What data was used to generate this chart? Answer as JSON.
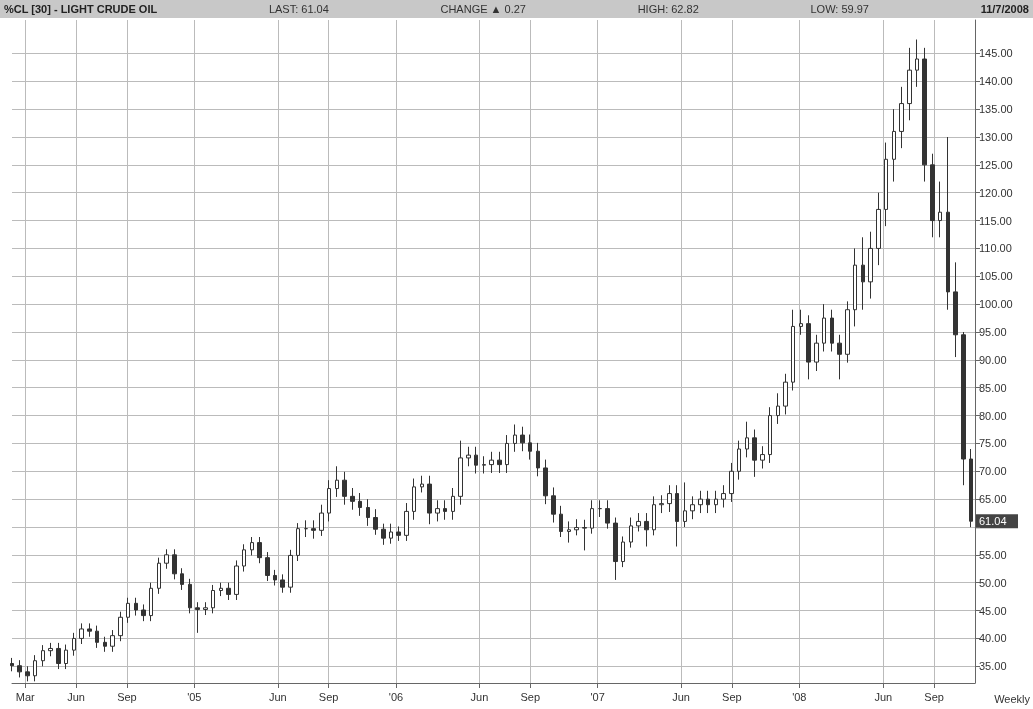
{
  "chart_data": {
    "type": "candlestick",
    "title": "%CL [30] - LIGHT CRUDE OIL",
    "annotations": [
      "LAST: 61.04",
      "CHANGE ▲ 0.27",
      "HIGH: 62.82",
      "LOW: 59.97",
      "11/7/2008",
      "Weekly",
      {
        "text": "61.04",
        "x": "2008-11-07",
        "y": 61.04
      }
    ],
    "x": [
      "2004-02-06",
      "2004-02-20",
      "2004-03-05",
      "2004-03-19",
      "2004-04-02",
      "2004-04-16",
      "2004-04-30",
      "2004-05-14",
      "2004-05-28",
      "2004-06-11",
      "2004-06-25",
      "2004-07-09",
      "2004-07-23",
      "2004-08-06",
      "2004-08-20",
      "2004-09-03",
      "2004-09-17",
      "2004-10-01",
      "2004-10-15",
      "2004-10-29",
      "2004-11-12",
      "2004-11-26",
      "2004-12-10",
      "2004-12-24",
      "2005-01-07",
      "2005-01-21",
      "2005-02-04",
      "2005-02-18",
      "2005-03-04",
      "2005-03-18",
      "2005-04-01",
      "2005-04-15",
      "2005-04-29",
      "2005-05-13",
      "2005-05-27",
      "2005-06-10",
      "2005-06-24",
      "2005-07-08",
      "2005-07-22",
      "2005-08-05",
      "2005-08-19",
      "2005-09-02",
      "2005-09-16",
      "2005-09-30",
      "2005-10-14",
      "2005-10-28",
      "2005-11-11",
      "2005-11-25",
      "2005-12-09",
      "2005-12-23",
      "2006-01-06",
      "2006-01-20",
      "2006-02-03",
      "2006-02-17",
      "2006-03-03",
      "2006-03-17",
      "2006-03-31",
      "2006-04-14",
      "2006-04-28",
      "2006-05-12",
      "2006-05-26",
      "2006-06-09",
      "2006-06-23",
      "2006-07-07",
      "2006-07-21",
      "2006-08-04",
      "2006-08-18",
      "2006-09-01",
      "2006-09-15",
      "2006-09-29",
      "2006-10-13",
      "2006-10-27",
      "2006-11-10",
      "2006-11-24",
      "2006-12-08",
      "2006-12-22",
      "2007-01-05",
      "2007-01-19",
      "2007-02-02",
      "2007-02-16",
      "2007-03-02",
      "2007-03-16",
      "2007-03-30",
      "2007-04-13",
      "2007-04-27",
      "2007-05-11",
      "2007-05-25",
      "2007-06-08",
      "2007-06-22",
      "2007-07-06",
      "2007-07-20",
      "2007-08-03",
      "2007-08-17",
      "2007-08-31",
      "2007-09-14",
      "2007-09-28",
      "2007-10-12",
      "2007-10-26",
      "2007-11-09",
      "2007-11-23",
      "2007-12-07",
      "2007-12-21",
      "2008-01-04",
      "2008-01-18",
      "2008-02-01",
      "2008-02-15",
      "2008-02-29",
      "2008-03-14",
      "2008-03-28",
      "2008-04-11",
      "2008-04-25",
      "2008-05-09",
      "2008-05-23",
      "2008-06-06",
      "2008-06-20",
      "2008-07-04",
      "2008-07-18",
      "2008-08-01",
      "2008-08-15",
      "2008-08-29",
      "2008-09-12",
      "2008-09-26",
      "2008-10-10",
      "2008-10-24",
      "2008-11-07"
    ],
    "ohlc": [
      [
        35.5,
        36.5,
        34.1,
        35.1
      ],
      [
        35.1,
        36.1,
        33.0,
        34.0
      ],
      [
        34.0,
        35.0,
        32.3,
        33.3
      ],
      [
        33.3,
        37.0,
        32.3,
        36.0
      ],
      [
        36.0,
        38.8,
        35.0,
        37.8
      ],
      [
        37.8,
        39.2,
        36.8,
        38.2
      ],
      [
        38.2,
        39.2,
        34.5,
        35.5
      ],
      [
        35.5,
        38.9,
        34.5,
        37.9
      ],
      [
        37.9,
        41.0,
        36.9,
        40.0
      ],
      [
        40.0,
        42.7,
        39.0,
        41.7
      ],
      [
        41.7,
        42.7,
        40.3,
        41.3
      ],
      [
        41.3,
        42.3,
        38.3,
        39.3
      ],
      [
        39.3,
        40.3,
        37.6,
        38.6
      ],
      [
        38.6,
        41.5,
        37.6,
        40.5
      ],
      [
        40.5,
        44.8,
        39.5,
        43.8
      ],
      [
        43.8,
        47.3,
        42.8,
        46.3
      ],
      [
        46.3,
        47.3,
        44.1,
        45.1
      ],
      [
        45.1,
        46.1,
        43.1,
        44.1
      ],
      [
        44.1,
        50.0,
        43.1,
        49.0
      ],
      [
        49.0,
        54.5,
        48.0,
        53.5
      ],
      [
        53.5,
        56.0,
        52.5,
        55.0
      ],
      [
        55.0,
        56.0,
        50.6,
        51.6
      ],
      [
        51.6,
        52.6,
        48.7,
        49.7
      ],
      [
        49.7,
        50.7,
        44.5,
        45.5
      ],
      [
        45.5,
        46.5,
        41.0,
        45.2
      ],
      [
        45.2,
        46.5,
        44.2,
        45.5
      ],
      [
        45.5,
        49.6,
        44.5,
        48.6
      ],
      [
        48.6,
        50.0,
        47.6,
        49.0
      ],
      [
        49.0,
        50.0,
        46.9,
        47.9
      ],
      [
        47.9,
        54.0,
        46.9,
        53.0
      ],
      [
        53.0,
        56.9,
        52.0,
        55.9
      ],
      [
        55.9,
        58.2,
        54.9,
        57.2
      ],
      [
        57.2,
        58.2,
        53.5,
        54.5
      ],
      [
        54.5,
        55.5,
        50.3,
        51.3
      ],
      [
        51.3,
        52.3,
        49.5,
        50.5
      ],
      [
        50.5,
        51.5,
        48.2,
        49.2
      ],
      [
        49.2,
        55.9,
        48.2,
        54.9
      ],
      [
        54.9,
        60.7,
        53.9,
        59.7
      ],
      [
        59.7,
        61.2,
        58.2,
        59.7
      ],
      [
        59.7,
        61.2,
        57.9,
        59.4
      ],
      [
        59.4,
        64.0,
        58.4,
        62.5
      ],
      [
        62.5,
        68.4,
        61.0,
        66.9
      ],
      [
        66.9,
        70.9,
        65.4,
        68.4
      ],
      [
        68.4,
        69.9,
        64.0,
        65.5
      ],
      [
        65.5,
        67.0,
        63.1,
        64.6
      ],
      [
        64.6,
        66.1,
        62.0,
        63.5
      ],
      [
        63.5,
        65.0,
        60.2,
        61.7
      ],
      [
        61.7,
        63.2,
        58.6,
        59.6
      ],
      [
        59.6,
        60.6,
        56.8,
        58.0
      ],
      [
        58.0,
        60.6,
        57.0,
        59.1
      ],
      [
        59.1,
        60.1,
        57.5,
        58.5
      ],
      [
        58.5,
        64.3,
        57.5,
        62.8
      ],
      [
        62.8,
        68.7,
        61.3,
        67.2
      ],
      [
        67.2,
        69.2,
        66.2,
        67.7
      ],
      [
        67.7,
        69.2,
        60.5,
        62.5
      ],
      [
        62.5,
        64.8,
        61.0,
        63.3
      ],
      [
        63.3,
        64.8,
        61.3,
        62.8
      ],
      [
        62.8,
        67.0,
        61.3,
        65.5
      ],
      [
        65.5,
        75.5,
        64.0,
        72.4
      ],
      [
        72.4,
        74.4,
        70.9,
        72.9
      ],
      [
        72.9,
        74.4,
        69.6,
        71.1
      ],
      [
        71.1,
        72.7,
        69.6,
        71.2
      ],
      [
        71.2,
        73.5,
        69.7,
        72.0
      ],
      [
        72.0,
        73.5,
        69.7,
        71.2
      ],
      [
        71.2,
        76.5,
        69.7,
        75.0
      ],
      [
        75.0,
        78.4,
        73.5,
        76.5
      ],
      [
        76.5,
        78.0,
        73.6,
        75.1
      ],
      [
        75.1,
        76.6,
        72.1,
        73.6
      ],
      [
        73.6,
        75.1,
        69.1,
        70.6
      ],
      [
        70.6,
        72.1,
        64.1,
        65.6
      ],
      [
        65.6,
        67.1,
        60.8,
        62.3
      ],
      [
        62.3,
        63.8,
        58.2,
        59.2
      ],
      [
        59.2,
        61.0,
        57.2,
        59.5
      ],
      [
        59.5,
        61.4,
        58.5,
        59.9
      ],
      [
        59.9,
        61.3,
        55.8,
        59.8
      ],
      [
        59.8,
        64.8,
        58.8,
        63.3
      ],
      [
        63.3,
        64.8,
        61.8,
        63.3
      ],
      [
        63.3,
        64.8,
        59.7,
        60.7
      ],
      [
        60.7,
        61.7,
        50.5,
        53.8
      ],
      [
        53.8,
        58.3,
        52.8,
        57.3
      ],
      [
        57.3,
        61.7,
        56.3,
        60.2
      ],
      [
        60.2,
        62.5,
        59.2,
        61.0
      ],
      [
        61.0,
        62.5,
        56.5,
        59.5
      ],
      [
        59.5,
        65.5,
        58.5,
        64.0
      ],
      [
        64.0,
        65.7,
        62.5,
        64.2
      ],
      [
        64.2,
        67.5,
        62.7,
        66.0
      ],
      [
        66.0,
        67.5,
        56.5,
        61.0
      ],
      [
        61.0,
        68.0,
        60.0,
        62.9
      ],
      [
        62.9,
        65.5,
        61.4,
        64.0
      ],
      [
        64.0,
        66.5,
        62.5,
        65.0
      ],
      [
        65.0,
        66.5,
        62.5,
        64.0
      ],
      [
        64.0,
        66.5,
        62.5,
        65.0
      ],
      [
        65.0,
        67.5,
        63.5,
        66.0
      ],
      [
        66.0,
        71.5,
        64.5,
        70.0
      ],
      [
        70.0,
        75.5,
        68.5,
        74.0
      ],
      [
        74.0,
        78.9,
        72.5,
        76.0
      ],
      [
        76.0,
        77.5,
        69.0,
        72.0
      ],
      [
        72.0,
        74.5,
        70.5,
        73.0
      ],
      [
        73.0,
        81.5,
        71.5,
        80.0
      ],
      [
        80.0,
        84.0,
        78.5,
        81.7
      ],
      [
        81.7,
        87.5,
        80.2,
        86.0
      ],
      [
        86.0,
        99.0,
        84.5,
        96.0
      ],
      [
        96.0,
        99.0,
        94.5,
        96.5
      ],
      [
        96.5,
        98.0,
        86.5,
        89.6
      ],
      [
        89.6,
        94.5,
        88.0,
        93.0
      ],
      [
        93.0,
        100.0,
        91.5,
        97.5
      ],
      [
        97.5,
        99.0,
        91.5,
        93.0
      ],
      [
        93.0,
        94.5,
        86.5,
        91.0
      ],
      [
        91.0,
        100.5,
        89.5,
        99.0
      ],
      [
        99.0,
        110.0,
        96.0,
        107.0
      ],
      [
        107.0,
        112.0,
        99.0,
        104.0
      ],
      [
        104.0,
        113.0,
        101.0,
        110.0
      ],
      [
        110.0,
        120.0,
        107.0,
        117.0
      ],
      [
        117.0,
        129.0,
        114.0,
        126.0
      ],
      [
        126.0,
        135.0,
        122.0,
        131.0
      ],
      [
        131.0,
        139.0,
        128.0,
        136.0
      ],
      [
        136.0,
        146.0,
        133.0,
        142.0
      ],
      [
        142.0,
        147.5,
        139.0,
        144.0
      ],
      [
        144.0,
        146.0,
        122.0,
        125.0
      ],
      [
        125.0,
        127.0,
        112.0,
        115.0
      ],
      [
        115.0,
        122.0,
        112.0,
        116.5
      ],
      [
        116.5,
        130.0,
        99.0,
        102.2
      ],
      [
        102.2,
        107.5,
        90.5,
        94.5
      ],
      [
        94.5,
        95.0,
        67.5,
        72.2
      ],
      [
        72.2,
        74.0,
        59.97,
        61.04
      ]
    ],
    "color": "#333333",
    "xlim": [
      "2004-02-06",
      "2008-11-14"
    ],
    "xticks": [
      {
        "value": "2004-03-01",
        "label": "Mar"
      },
      {
        "value": "2004-06-01",
        "label": "Jun"
      },
      {
        "value": "2004-09-01",
        "label": "Sep"
      },
      {
        "value": "2005-01-01",
        "label": "'05"
      },
      {
        "value": "2005-06-01",
        "label": "Jun"
      },
      {
        "value": "2005-09-01",
        "label": "Sep"
      },
      {
        "value": "2006-01-01",
        "label": "'06"
      },
      {
        "value": "2006-06-01",
        "label": "Jun"
      },
      {
        "value": "2006-09-01",
        "label": "Sep"
      },
      {
        "value": "2007-01-01",
        "label": "'07"
      },
      {
        "value": "2007-06-01",
        "label": "Jun"
      },
      {
        "value": "2007-09-01",
        "label": "Sep"
      },
      {
        "value": "2008-01-01",
        "label": "'08"
      },
      {
        "value": "2008-06-01",
        "label": "Jun"
      },
      {
        "value": "2008-09-01",
        "label": "Sep"
      }
    ],
    "ylim": [
      32,
      151
    ],
    "yticks": [
      {
        "value": 35,
        "label": "35.00"
      },
      {
        "value": 40,
        "label": "40.00"
      },
      {
        "value": 45,
        "label": "45.00"
      },
      {
        "value": 50,
        "label": "50.00"
      },
      {
        "value": 55,
        "label": "55.00"
      },
      {
        "value": 60,
        "label": null
      },
      {
        "value": 65,
        "label": "65.00"
      },
      {
        "value": 70,
        "label": "70.00"
      },
      {
        "value": 75,
        "label": "75.00"
      },
      {
        "value": 80,
        "label": "80.00"
      },
      {
        "value": 85,
        "label": "85.00"
      },
      {
        "value": 90,
        "label": "90.00"
      },
      {
        "value": 95,
        "label": "95.00"
      },
      {
        "value": 100,
        "label": "100.00"
      },
      {
        "value": 105,
        "label": "105.00"
      },
      {
        "value": 110,
        "label": "110.00"
      },
      {
        "value": 115,
        "label": "115.00"
      },
      {
        "value": 120,
        "label": "120.00"
      },
      {
        "value": 125,
        "label": "125.00"
      },
      {
        "value": 130,
        "label": "130.00"
      },
      {
        "value": 135,
        "label": "135.00"
      },
      {
        "value": 140,
        "label": "140.00"
      },
      {
        "value": 145,
        "label": "145.00"
      }
    ],
    "grid": true
  }
}
